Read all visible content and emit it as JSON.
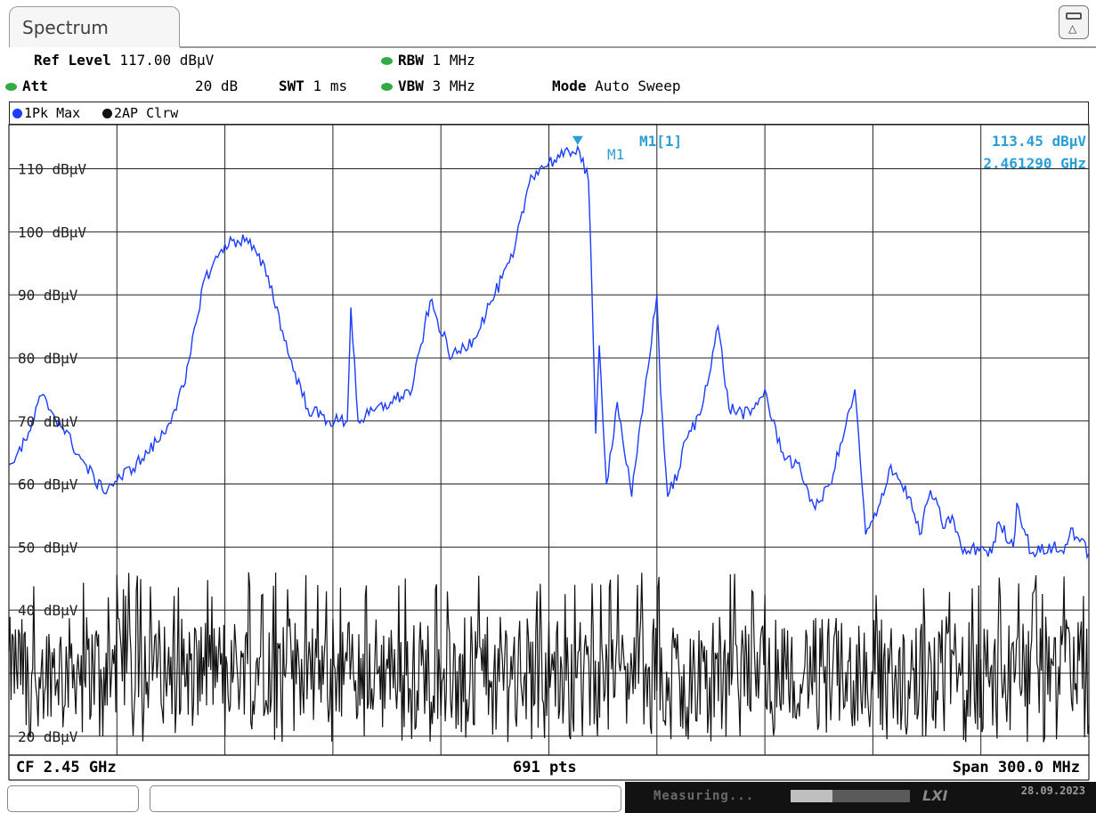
{
  "app": {
    "tab_title": "Spectrum"
  },
  "settings": {
    "ref_level_label": "Ref Level",
    "ref_level_value": "117.00 dBµV",
    "att_label": "Att",
    "att_value": "20 dB",
    "swt_label": "SWT",
    "swt_value": "1 ms",
    "rbw_label": "RBW",
    "rbw_value": "1 MHz",
    "vbw_label": "VBW",
    "vbw_value": "3 MHz",
    "mode_label": "Mode",
    "mode_value": "Auto Sweep"
  },
  "traces": {
    "trace1_label": "1Pk Max",
    "trace2_label": "2AP Clrw",
    "trace1_color": "#1c3cff",
    "trace2_color": "#111111"
  },
  "marker": {
    "name": "M1",
    "title": "M1[1]",
    "level": "113.45 dBµV",
    "freq": "2.461290 GHz",
    "color": "#2a9fd6"
  },
  "footer": {
    "cf": "CF 2.45 GHz",
    "pts": "691 pts",
    "span": "Span 300.0 MHz"
  },
  "status": {
    "measuring": "Measuring...",
    "progress": 0.35,
    "lxi": "LXI",
    "date": "28.09.2023"
  },
  "chart_data": {
    "type": "line",
    "xlim_mhz": [
      2300,
      2600
    ],
    "ylim": [
      17,
      117
    ],
    "y_unit": "dBµV",
    "y_ticks": [
      110,
      100,
      90,
      80,
      70,
      60,
      50,
      40,
      20
    ],
    "y_tick_labels": [
      "110 dBµV",
      "100 dBµV",
      "90 dBµV",
      "80 dBµV",
      "70 dBµV",
      "60 dBµV",
      "50 dBµV",
      "40 dBµV",
      "20 dBµV"
    ],
    "grid": true,
    "series": [
      {
        "name": "1Pk Max",
        "color": "#1c3cff",
        "x": [
          2300,
          2305,
          2309,
          2315,
          2320,
          2326,
          2331,
          2337,
          2343,
          2349,
          2354,
          2360,
          2366,
          2372,
          2378,
          2383,
          2389,
          2394,
          2395,
          2397,
          2400,
          2406,
          2412,
          2417,
          2423,
          2429,
          2434,
          2440,
          2445,
          2450,
          2454,
          2458,
          2461,
          2462,
          2463,
          2464,
          2466,
          2469,
          2473,
          2480,
          2481,
          2483,
          2486,
          2488,
          2492,
          2497,
          2500,
          2506,
          2510,
          2512,
          2515,
          2520,
          2524,
          2528,
          2532,
          2535,
          2538,
          2541,
          2545,
          2550,
          2553,
          2556,
          2560,
          2562,
          2565,
          2570,
          2573,
          2575,
          2579,
          2580,
          2584,
          2590,
          2593,
          2595,
          2600
        ],
        "y": [
          63,
          67,
          74,
          69,
          64,
          59,
          61,
          64,
          68,
          76,
          92,
          98,
          99,
          93,
          80,
          72,
          70,
          70,
          88,
          70,
          71,
          73,
          75,
          89,
          80,
          83,
          89,
          96,
          109,
          111,
          112,
          113.5,
          108,
          90,
          68,
          82,
          60,
          73,
          58,
          90,
          75,
          58,
          62,
          67,
          71,
          85,
          72,
          71,
          75,
          70,
          65,
          62,
          56,
          60,
          68,
          75,
          52,
          55,
          63,
          58,
          52,
          59,
          53,
          55,
          49,
          50,
          49,
          54,
          50,
          57,
          49,
          50,
          49,
          53,
          49
        ]
      },
      {
        "name": "2AP Clrw",
        "color": "#111111",
        "mean": 31,
        "min": 19,
        "max": 46
      }
    ]
  }
}
